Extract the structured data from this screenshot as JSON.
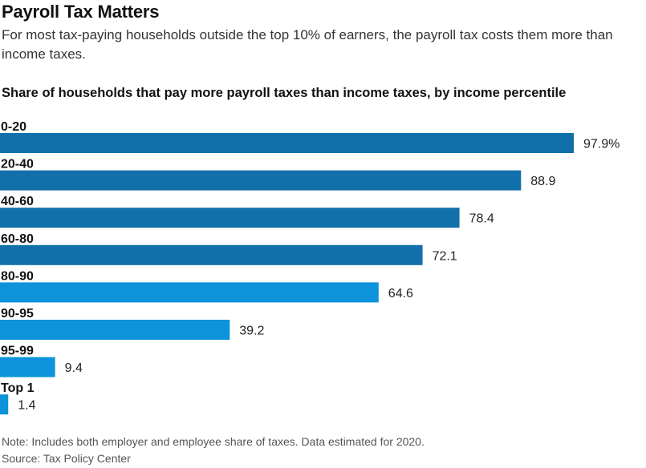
{
  "header": {
    "title": "Payroll Tax Matters",
    "subtitle": "For most tax-paying households outside the top 10% of earners, the payroll tax costs them more than income taxes."
  },
  "footer": {
    "note": "Note: Includes both employer and employee share of taxes. Data estimated for 2020.",
    "source": "Source: Tax Policy Center"
  },
  "colors": {
    "bar_dark": "#1170aa",
    "bar_light": "#0c93d9"
  },
  "chart_data": {
    "type": "bar",
    "orientation": "horizontal",
    "title": "Share of households that pay more payroll taxes than income taxes, by income percentile",
    "xlabel": "",
    "ylabel": "",
    "xlim": [
      0,
      100
    ],
    "grid": false,
    "legend": "none",
    "categories": [
      "0-20",
      "20-40",
      "40-60",
      "60-80",
      "80-90",
      "90-95",
      "95-99",
      "Top 1"
    ],
    "values": [
      97.9,
      88.9,
      78.4,
      72.1,
      64.6,
      39.2,
      9.4,
      1.4
    ],
    "value_labels": [
      "97.9%",
      "88.9",
      "78.4",
      "72.1",
      "64.6",
      "39.2",
      "9.4",
      "1.4"
    ],
    "bar_colors": [
      "#1170aa",
      "#1170aa",
      "#1170aa",
      "#1170aa",
      "#0c93d9",
      "#0c93d9",
      "#0c93d9",
      "#0c93d9"
    ]
  }
}
